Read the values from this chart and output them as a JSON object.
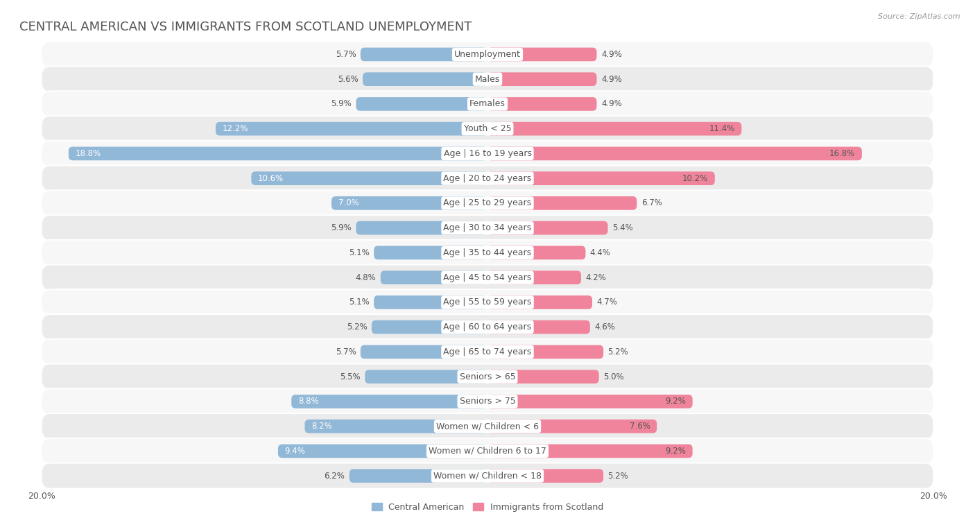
{
  "title": "CENTRAL AMERICAN VS IMMIGRANTS FROM SCOTLAND UNEMPLOYMENT",
  "source": "Source: ZipAtlas.com",
  "categories": [
    "Unemployment",
    "Males",
    "Females",
    "Youth < 25",
    "Age | 16 to 19 years",
    "Age | 20 to 24 years",
    "Age | 25 to 29 years",
    "Age | 30 to 34 years",
    "Age | 35 to 44 years",
    "Age | 45 to 54 years",
    "Age | 55 to 59 years",
    "Age | 60 to 64 years",
    "Age | 65 to 74 years",
    "Seniors > 65",
    "Seniors > 75",
    "Women w/ Children < 6",
    "Women w/ Children 6 to 17",
    "Women w/ Children < 18"
  ],
  "left_values": [
    5.7,
    5.6,
    5.9,
    12.2,
    18.8,
    10.6,
    7.0,
    5.9,
    5.1,
    4.8,
    5.1,
    5.2,
    5.7,
    5.5,
    8.8,
    8.2,
    9.4,
    6.2
  ],
  "right_values": [
    4.9,
    4.9,
    4.9,
    11.4,
    16.8,
    10.2,
    6.7,
    5.4,
    4.4,
    4.2,
    4.7,
    4.6,
    5.2,
    5.0,
    9.2,
    7.6,
    9.2,
    5.2
  ],
  "left_color": "#92b8d8",
  "right_color": "#f0849c",
  "left_label": "Central American",
  "right_label": "Immigrants from Scotland",
  "max_val": 20.0,
  "bar_height": 0.55,
  "title_color": "#555555",
  "text_color": "#555555",
  "title_fontsize": 13,
  "label_fontsize": 9,
  "value_fontsize": 8.5,
  "axis_label_fontsize": 9,
  "legend_fontsize": 9,
  "row_colors": [
    "#f7f7f7",
    "#ebebeb"
  ]
}
